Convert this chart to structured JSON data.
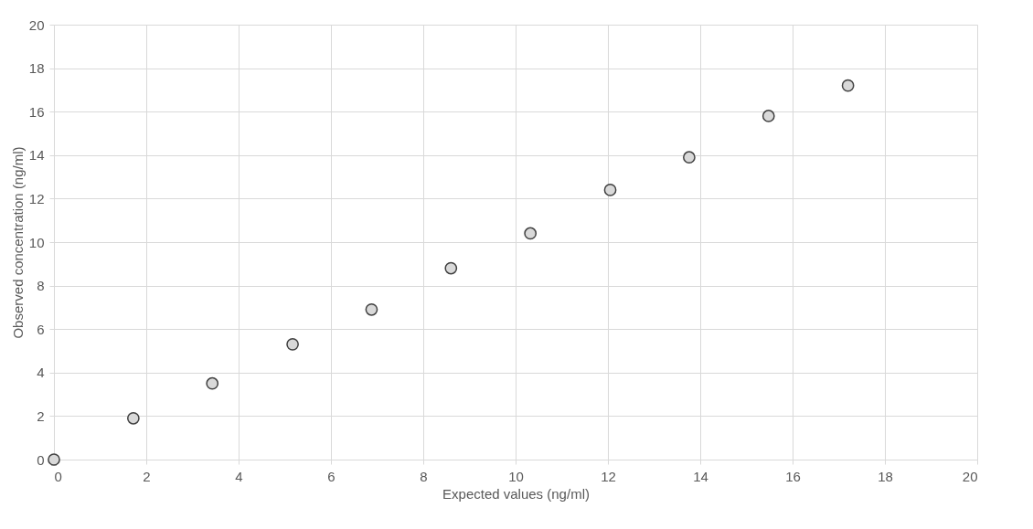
{
  "chart_data": {
    "type": "scatter",
    "xlabel": "Expected values (ng/ml)",
    "ylabel": "Observed concentration (ng/ml)",
    "x": [
      0,
      1.72,
      3.43,
      5.17,
      6.88,
      8.6,
      10.32,
      12.05,
      13.76,
      15.48,
      17.2
    ],
    "series": [
      {
        "color": "#d9d9d9",
        "values": [
          0,
          1.9,
          3.5,
          5.3,
          6.9,
          8.8,
          10.4,
          12.4,
          13.9,
          15.8,
          17.2
        ]
      }
    ],
    "xlim": [
      0,
      20
    ],
    "ylim": [
      0,
      20
    ],
    "xticks": [
      0,
      2,
      4,
      6,
      8,
      10,
      12,
      14,
      16,
      18,
      20
    ],
    "yticks": [
      0,
      2,
      4,
      6,
      8,
      10,
      12,
      14,
      16,
      18,
      20
    ],
    "grid": true,
    "marker": "circle"
  }
}
